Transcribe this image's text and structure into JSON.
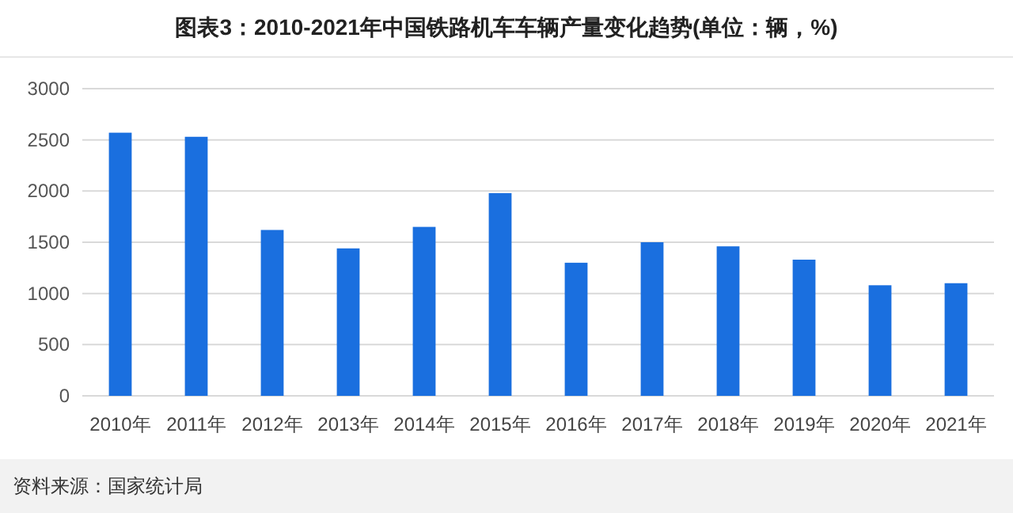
{
  "chart_data": {
    "type": "bar",
    "title": "图表3：2010-2021年中国铁路机车车辆产量变化趋势(单位：辆，%)",
    "categories": [
      "2010年",
      "2011年",
      "2012年",
      "2013年",
      "2014年",
      "2015年",
      "2016年",
      "2017年",
      "2018年",
      "2019年",
      "2020年",
      "2021年"
    ],
    "values": [
      2570,
      2530,
      1620,
      1440,
      1650,
      1980,
      1300,
      1500,
      1460,
      1330,
      1080,
      1100
    ],
    "color": "#1a6fdf",
    "ylim": [
      0,
      3000
    ],
    "yticks": [
      0,
      500,
      1000,
      1500,
      2000,
      2500,
      3000
    ],
    "grid": "y",
    "annotations": [
      "资料来源：国家统计局"
    ]
  }
}
